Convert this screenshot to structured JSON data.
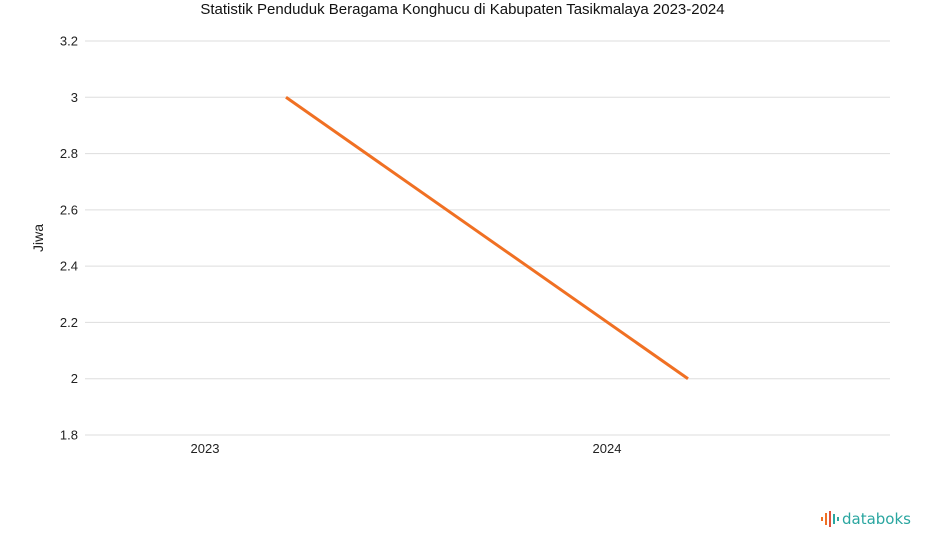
{
  "chart_data": {
    "type": "line",
    "title": "Statistik Penduduk Beragama Konghucu di Kabupaten Tasikmalaya 2023-2024",
    "xlabel": "",
    "ylabel": "Jiwa",
    "categories": [
      "2023",
      "2024"
    ],
    "series": [
      {
        "values": [
          3,
          2
        ],
        "color": "#f07023"
      }
    ],
    "ylim": [
      1.8,
      3.2
    ],
    "yticks": [
      "1.8",
      "2",
      "2.2",
      "2.4",
      "2.6",
      "2.8",
      "3",
      "3.2"
    ],
    "grid": true,
    "legend": "none"
  },
  "brand": {
    "name": "databoks",
    "icon": "databoks-logo-icon",
    "color": "#2aa6a0"
  }
}
